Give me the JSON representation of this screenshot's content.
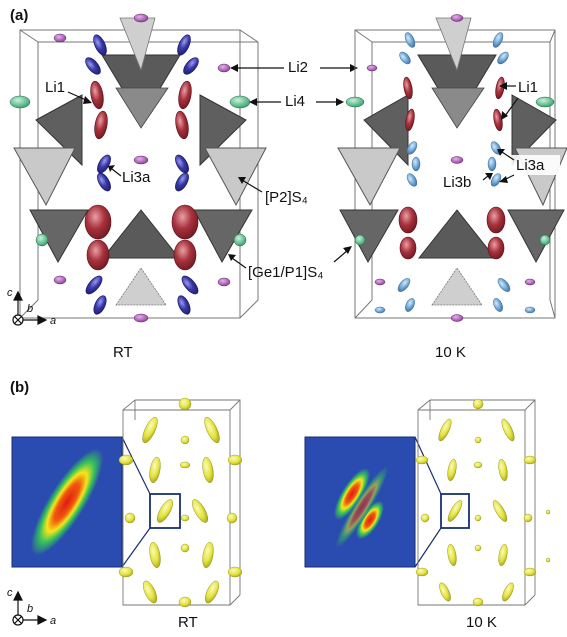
{
  "panel_a": {
    "label": "(a)",
    "left_caption": "RT",
    "right_caption": "10 K",
    "labels": {
      "li1_left": "Li1",
      "li2": "Li2",
      "li4": "Li4",
      "li3a_left": "Li3a",
      "p2s4": "[P2]S₄",
      "ge1p1s4": "[Ge1/P1]S₄",
      "li1_right": "Li1",
      "li3a_right": "Li3a",
      "li3b": "Li3b"
    },
    "axes": {
      "c": "c",
      "b": "b",
      "a": "a"
    }
  },
  "panel_b": {
    "label": "(b)",
    "left_caption": "RT",
    "right_caption": "10 K",
    "axes": {
      "c": "c",
      "b": "b",
      "a": "a"
    }
  },
  "colors": {
    "li1": "#9e2a35",
    "li3_rt": "#3a3aa8",
    "li3_10k": "#6fa3d6",
    "li2": "#a64fb0",
    "li4": "#4dbf86",
    "tetra_dark": "#5f5f5f",
    "tetra_light": "#c7c7c7",
    "isosurface": "#e7e64a",
    "heatmap_bg": "#2a4bb0"
  }
}
